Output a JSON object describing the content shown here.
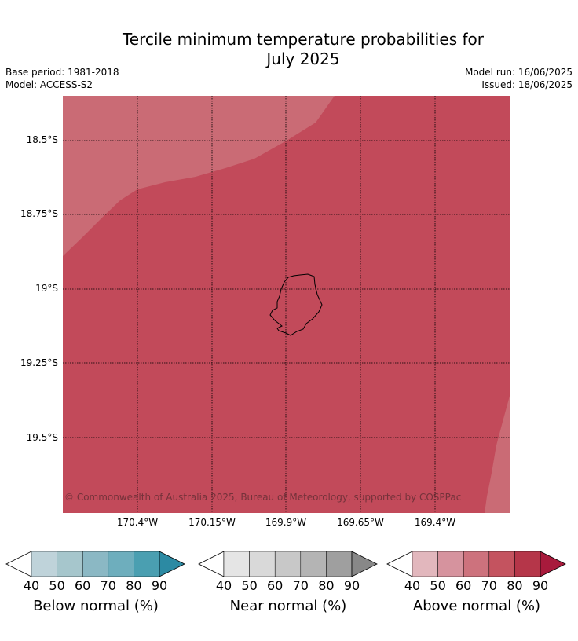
{
  "title_line1": "Tercile minimum temperature probabilities for",
  "title_line2": "July 2025",
  "base_period": "Base period: 1981-2018",
  "model": "Model: ACCESS-S2",
  "model_run": "Model run: 16/06/2025",
  "issued": "Issued: 18/06/2025",
  "copyright": "© Commonwealth of Australia 2025, Bureau of Meteorology, supported by COSPPac",
  "lat_labels": [
    "18.5°S",
    "18.75°S",
    "19°S",
    "19.25°S",
    "19.5°S"
  ],
  "lon_labels": [
    "170.4°W",
    "170.15°W",
    "169.9°W",
    "169.65°W",
    "169.4°W"
  ],
  "colorbars": [
    {
      "label": "Below normal (%)",
      "ticks": [
        "40",
        "50",
        "60",
        "70",
        "80",
        "90"
      ],
      "colors": [
        "#bfd3da",
        "#a6c6cc",
        "#8bb8c4",
        "#6eaebd",
        "#4a9fb1",
        "#2c8aa3"
      ]
    },
    {
      "label": "Near normal (%)",
      "ticks": [
        "40",
        "50",
        "60",
        "70",
        "80",
        "90"
      ],
      "colors": [
        "#e5e5e5",
        "#d9d9d9",
        "#c8c8c8",
        "#b4b4b4",
        "#9f9f9f",
        "#888888"
      ]
    },
    {
      "label": "Above normal (%)",
      "ticks": [
        "40",
        "50",
        "60",
        "70",
        "80",
        "90"
      ],
      "colors": [
        "#e2b7bd",
        "#d6939e",
        "#cd727d",
        "#c4535f",
        "#b53649",
        "#a81a3c"
      ]
    }
  ],
  "map_colors": {
    "category_70_80": "#c24a5a",
    "category_60_70": "#ca6b75",
    "coastline": "#000000"
  }
}
